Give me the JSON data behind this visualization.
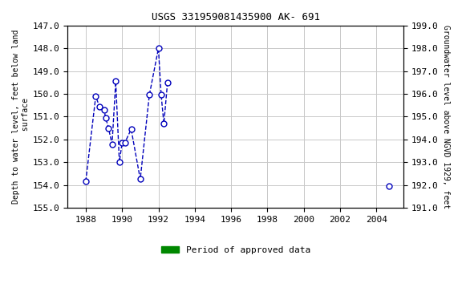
{
  "title": "USGS 331959081435900 AK- 691",
  "ylabel_left": "Depth to water level, feet below land\n surface",
  "ylabel_right": "Groundwater level above NGVD 1929, feet",
  "ylim_left": [
    155.0,
    147.0
  ],
  "ylim_right": [
    191.0,
    199.0
  ],
  "yticks_left": [
    147.0,
    148.0,
    149.0,
    150.0,
    151.0,
    152.0,
    153.0,
    154.0,
    155.0
  ],
  "yticks_right": [
    199.0,
    198.0,
    197.0,
    196.0,
    195.0,
    194.0,
    193.0,
    192.0,
    191.0
  ],
  "xlim": [
    1987.0,
    2005.5
  ],
  "xticks": [
    1988,
    1990,
    1992,
    1994,
    1996,
    1998,
    2000,
    2002,
    2004
  ],
  "segment1_x": [
    1988.0,
    1988.55,
    1988.75,
    1989.0,
    1989.1,
    1989.25,
    1989.45,
    1989.65,
    1989.85,
    1990.0,
    1990.15,
    1990.5,
    1991.0,
    1991.5,
    1992.0,
    1992.15,
    1992.3,
    1992.5
  ],
  "segment1_y": [
    153.85,
    150.1,
    150.55,
    150.7,
    151.05,
    151.5,
    152.2,
    149.45,
    153.0,
    152.15,
    152.15,
    151.55,
    153.75,
    150.05,
    148.0,
    150.05,
    151.3,
    149.5
  ],
  "segment2_x": [
    2004.7
  ],
  "segment2_y": [
    154.05
  ],
  "line_color": "#0000bb",
  "marker_facecolor": "#ffffff",
  "marker_edgecolor": "#0000bb",
  "marker_size": 5,
  "line_style": "--",
  "line_width": 1.0,
  "approved_bar1_start": 1988.0,
  "approved_bar1_end": 1992.75,
  "approved_bar2_start": 2004.45,
  "approved_bar2_end": 2004.75,
  "approved_color": "#008800",
  "approved_y_center": 155.0,
  "approved_bar_height": 0.25,
  "grid_color": "#c8c8c8",
  "bg_color": "#ffffff",
  "font_family": "monospace",
  "legend_label": "Period of approved data",
  "title_fontsize": 9,
  "label_fontsize": 7,
  "tick_fontsize": 8
}
